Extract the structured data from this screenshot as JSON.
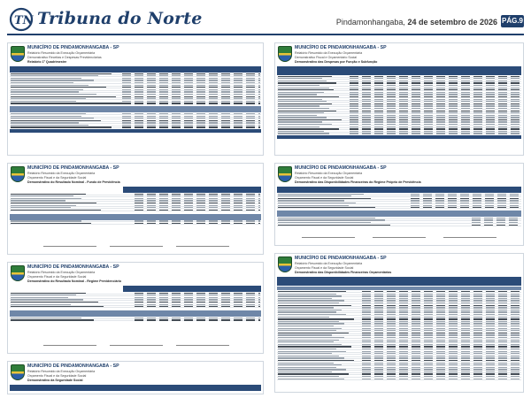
{
  "masthead": {
    "logo_text": "Tribuna do Norte",
    "dateline_city": "Pindamonhangaba,",
    "dateline_date": "24 de setembro de 2026",
    "page_badge": "PÁG.9"
  },
  "colors": {
    "brand": "#1f3f6b",
    "table_header": "#2b4b78"
  },
  "panels": [
    {
      "title": "MUNICÍPIO DE PINDAMONHANGABA - SP",
      "sub1": "Relatório Resumido da Execução Orçamentária",
      "sub2": "Demonstrativo Receitas e Despesas Previdenciárias",
      "sub3": "Relatório 1º Quadrimestre"
    },
    {
      "title": "MUNICÍPIO DE PINDAMONHANGABA - SP",
      "sub1": "Relatório Resumido da Execução Orçamentária",
      "sub2": "Demonstrativo Fiscal e Orçamentário Social",
      "sub3": "Demonstrativo das Despesas por Função e Subfunção"
    },
    {
      "title": "MUNICÍPIO DE PINDAMONHANGABA - SP",
      "sub1": "Relatório Resumido da Execução Orçamentária",
      "sub2": "Orçamento Fiscal e da Seguridade Social",
      "sub3": "Demonstrativo do Resultado Nominal - Fundo de Previdência"
    },
    {
      "title": "MUNICÍPIO DE PINDAMONHANGABA - SP",
      "sub1": "Relatório Resumido da Execução Orçamentária",
      "sub2": "Orçamento Fiscal e da Seguridade Social",
      "sub3": "Demonstrativo das Disponibilidades Financeiras do Regime Próprio de Previdência"
    },
    {
      "title": "MUNICÍPIO DE PINDAMONHANGABA - SP",
      "sub1": "Relatório Resumido da Execução Orçamentária",
      "sub2": "Orçamento Fiscal e da Seguridade Social",
      "sub3": "Demonstrativo do Resultado Nominal - Regime Previdenciário"
    },
    {
      "title": "MUNICÍPIO DE PINDAMONHANGABA - SP",
      "sub1": "Relatório Resumido da Execução Orçamentária",
      "sub2": "Orçamento Fiscal e da Seguridade Social",
      "sub3": "Demonstrativo das Disponibilidades Financeiras Orçamentárias"
    },
    {
      "title": "MUNICÍPIO DE PINDAMONHANGABA - SP",
      "sub1": "Relatório Resumido da Execução Orçamentária",
      "sub2": "Orçamento Fiscal e da Seguridade Social",
      "sub3": "Demonstrativo da Seguridade Social"
    }
  ]
}
